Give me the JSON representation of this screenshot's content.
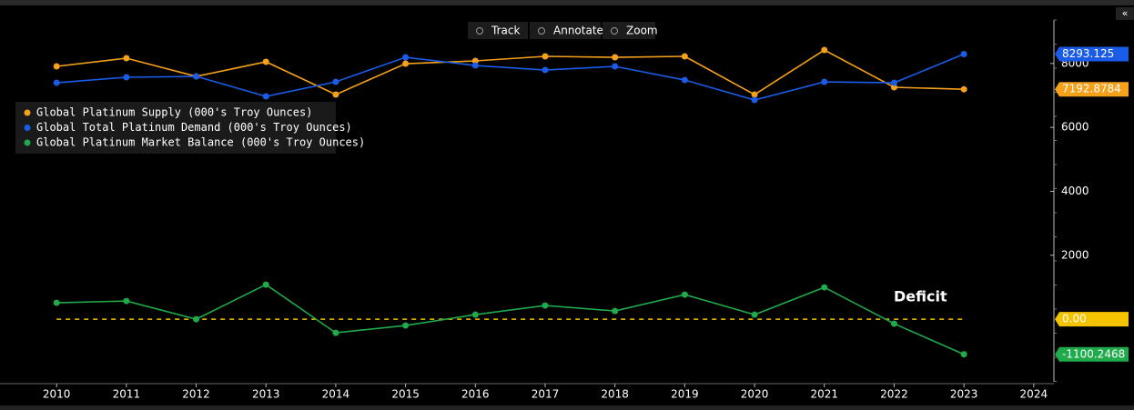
{
  "chart_data": {
    "type": "line",
    "toolbar": [
      "Track",
      "Annotate",
      "Zoom"
    ],
    "annotation": "Deficit",
    "x": [
      2010,
      2011,
      2012,
      2013,
      2014,
      2015,
      2016,
      2017,
      2018,
      2019,
      2020,
      2021,
      2022,
      2023
    ],
    "series": [
      {
        "name": "Global Platinum Supply (000's Troy Ounces)",
        "color": "#f5a11c",
        "values": [
          7909,
          8165,
          7596,
          8051,
          7027,
          7994,
          8080,
          8222,
          8193,
          8222,
          7027,
          8421,
          7255,
          7192.8784
        ]
      },
      {
        "name": "Global Total Platinum Demand (000's Troy Ounces)",
        "color": "#1a5ce8",
        "values": [
          7397,
          7568,
          7596,
          6970,
          7425,
          8193,
          7937,
          7795,
          7909,
          7482,
          6856,
          7425,
          7397,
          8293.125
        ]
      },
      {
        "name": "Global Platinum Market Balance (000's Troy Ounces)",
        "color": "#1faa4b",
        "values": [
          512,
          569,
          0,
          1081,
          -427,
          -199,
          142,
          427,
          256,
          768,
          142,
          996,
          -142,
          -1100.2468
        ]
      }
    ],
    "zero_line": {
      "value": 0,
      "label": "0.00",
      "color": "#f5c400"
    },
    "xlim": [
      2009.45,
      2024.25
    ],
    "xticks": [
      2010,
      2011,
      2012,
      2013,
      2014,
      2015,
      2016,
      2017,
      2018,
      2019,
      2020,
      2021,
      2022,
      2023,
      2024
    ],
    "ylim": [
      -1960,
      9360
    ],
    "yticks": [
      2000,
      4000,
      6000,
      8000
    ],
    "legend": "upper left"
  }
}
